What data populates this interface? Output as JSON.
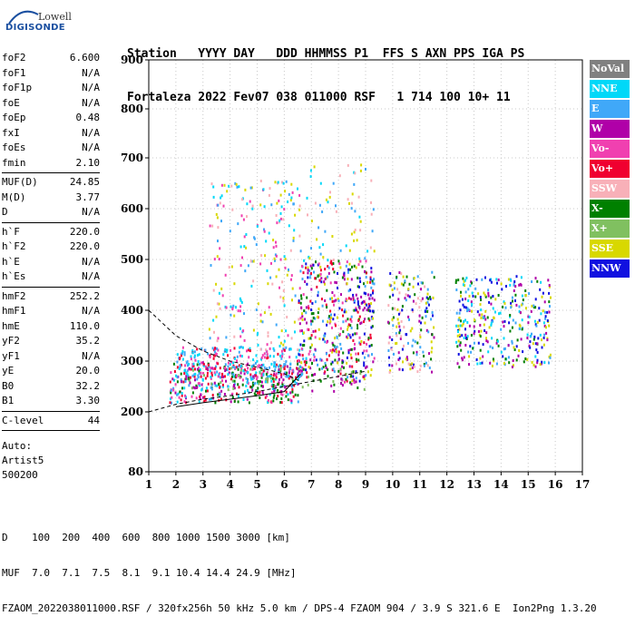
{
  "logo": {
    "line1": "Lowell",
    "line2": "DIGISONDE"
  },
  "header": {
    "labels": "Station   YYYY DAY   DDD HHMMSS P1  FFS S AXN PPS IGA PS",
    "values": "Fortaleza 2022 Fev07 038 011000 RSF   1 714 100 10+ 11"
  },
  "params_group1": [
    {
      "name": "foF2",
      "value": "6.600"
    },
    {
      "name": "foF1",
      "value": "N/A"
    },
    {
      "name": "foF1p",
      "value": "N/A"
    },
    {
      "name": "foE",
      "value": "N/A"
    },
    {
      "name": "foEp",
      "value": "0.48"
    },
    {
      "name": "fxI",
      "value": "N/A"
    },
    {
      "name": "foEs",
      "value": "N/A"
    },
    {
      "name": "fmin",
      "value": "2.10"
    }
  ],
  "params_group2": [
    {
      "name": "MUF(D)",
      "value": "24.85"
    },
    {
      "name": "M(D)",
      "value": "3.77"
    },
    {
      "name": "D",
      "value": "N/A"
    }
  ],
  "params_group3": [
    {
      "name": "h`F",
      "value": "220.0"
    },
    {
      "name": "h`F2",
      "value": "220.0"
    },
    {
      "name": "h`E",
      "value": "N/A"
    },
    {
      "name": "h`Es",
      "value": "N/A"
    }
  ],
  "params_group4": [
    {
      "name": "hmF2",
      "value": "252.2"
    },
    {
      "name": "hmF1",
      "value": "N/A"
    },
    {
      "name": "hmE",
      "value": "110.0"
    },
    {
      "name": "yF2",
      "value": "35.2"
    },
    {
      "name": "yF1",
      "value": "N/A"
    },
    {
      "name": "yE",
      "value": "20.0"
    },
    {
      "name": "B0",
      "value": "32.2"
    },
    {
      "name": "B1",
      "value": "3.30"
    }
  ],
  "params_group5": [
    {
      "name": "C-level",
      "value": "44"
    }
  ],
  "auto": {
    "line1": "Auto:",
    "line2": "Artist5",
    "line3": "500200"
  },
  "legend": [
    {
      "label": "NoVal",
      "color": "#808080"
    },
    {
      "label": "NNE",
      "color": "#00d8f8"
    },
    {
      "label": "E",
      "color": "#40a8f8"
    },
    {
      "label": "W",
      "color": "#b000a8"
    },
    {
      "label": "Vo-",
      "color": "#f040b0"
    },
    {
      "label": "Vo+",
      "color": "#f00030"
    },
    {
      "label": "SSW",
      "color": "#f8b0b8"
    },
    {
      "label": "X-",
      "color": "#008000"
    },
    {
      "label": "X+",
      "color": "#80c060"
    },
    {
      "label": "SSE",
      "color": "#d8d800"
    },
    {
      "label": "NNW",
      "color": "#1010e0"
    }
  ],
  "footer": {
    "line1": "D    100  200  400  600  800 1000 1500 3000 [km]",
    "line2": "MUF  7.0  7.1  7.5  8.1  9.1 10.4 14.4 24.9 [MHz]",
    "line3": "FZAOM_2022038011000.RSF / 320fx256h 50 kHz 5.0 km / DPS-4 FZAOM 904 / 3.9 S 321.6 E  Ion2Png 1.3.20"
  },
  "chart_data": {
    "type": "scatter",
    "title": "",
    "xlabel": "",
    "ylabel": "",
    "xlim": [
      1,
      17
    ],
    "ylim": [
      80,
      900
    ],
    "x_ticks": [
      "1",
      "2",
      "3",
      "4",
      "5",
      "6",
      "7",
      "8",
      "9",
      "10",
      "11",
      "12",
      "13",
      "14",
      "15",
      "16",
      "17"
    ],
    "y_ticks": [
      "80",
      "200",
      "300",
      "400",
      "500",
      "600",
      "700",
      "800",
      "900"
    ],
    "y_tick_values": [
      80,
      200,
      300,
      400,
      500,
      600,
      700,
      800,
      900
    ],
    "grid": true,
    "clusters": [
      {
        "x": [
          1.75,
          6.6
        ],
        "y": [
          220,
          300
        ],
        "density": 1.0,
        "colors": [
          "#f00030",
          "#f040b0",
          "#40a8f8",
          "#008000",
          "#b000a8",
          "#00d8f8"
        ]
      },
      {
        "x": [
          2.0,
          6.8
        ],
        "y": [
          270,
          330
        ],
        "density": 0.9,
        "colors": [
          "#40a8f8",
          "#00d8f8",
          "#f040b0",
          "#f00030"
        ]
      },
      {
        "x": [
          3.2,
          6.7
        ],
        "y": [
          320,
          660
        ],
        "density": 0.22,
        "colors": [
          "#00d8f8",
          "#40a8f8",
          "#d8d800",
          "#f8b0b8",
          "#f040b0"
        ]
      },
      {
        "x": [
          6.5,
          9.3
        ],
        "y": [
          260,
          500
        ],
        "density": 0.7,
        "colors": [
          "#f00030",
          "#f040b0",
          "#b000a8",
          "#d8d800",
          "#1010e0",
          "#40a8f8",
          "#008000"
        ]
      },
      {
        "x": [
          6.8,
          9.3
        ],
        "y": [
          500,
          690
        ],
        "density": 0.15,
        "colors": [
          "#d8d800",
          "#00d8f8",
          "#40a8f8",
          "#f8b0b8"
        ]
      },
      {
        "x": [
          8.5,
          9.3
        ],
        "y": [
          400,
          440
        ],
        "density": 0.9,
        "colors": [
          "#1010e0",
          "#b000a8"
        ]
      },
      {
        "x": [
          9.8,
          11.5
        ],
        "y": [
          280,
          480
        ],
        "density": 0.55,
        "colors": [
          "#1010e0",
          "#40a8f8",
          "#f8b0b8",
          "#d8d800",
          "#008000",
          "#b000a8"
        ]
      },
      {
        "x": [
          12.3,
          15.8
        ],
        "y": [
          290,
          470
        ],
        "density": 0.6,
        "colors": [
          "#1010e0",
          "#40a8f8",
          "#00d8f8",
          "#008000",
          "#b000a8",
          "#d8d800"
        ]
      },
      {
        "x": [
          2.0,
          9.0
        ],
        "y": [
          240,
          290
        ],
        "density": 0.3,
        "colors": [
          "#b000a8",
          "#008000",
          "#80c060"
        ]
      }
    ],
    "traces": [
      {
        "name": "dashed-upper",
        "style": "dashed",
        "x": [
          1.0,
          2.0,
          3.0,
          4.0,
          5.0,
          6.0,
          6.6
        ],
        "y": [
          400,
          350,
          320,
          300,
          288,
          275,
          260
        ]
      },
      {
        "name": "dashed-lower",
        "style": "dashed",
        "x": [
          1.0,
          2.0,
          3.0,
          4.0,
          5.0,
          6.0,
          7.5,
          9.0
        ],
        "y": [
          200,
          215,
          225,
          232,
          240,
          250,
          265,
          280
        ]
      },
      {
        "name": "solid-profile",
        "style": "solid",
        "x": [
          2.0,
          3.0,
          4.0,
          5.0,
          6.0,
          6.6
        ],
        "y": [
          210,
          218,
          225,
          232,
          240,
          275
        ]
      }
    ]
  }
}
